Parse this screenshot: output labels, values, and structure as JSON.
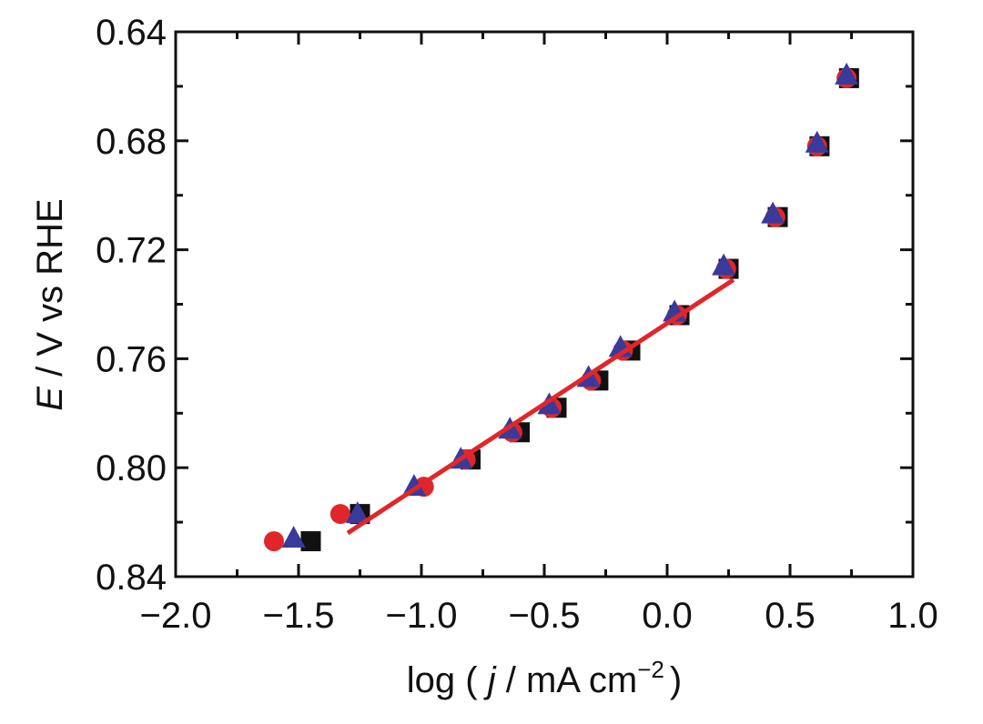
{
  "chart_data": {
    "type": "scatter",
    "xlim": [
      -2.0,
      1.0
    ],
    "ylim": [
      0.84,
      0.64
    ],
    "y_inverted": true,
    "x_ticks": [
      -2.0,
      -1.5,
      -1.0,
      -0.5,
      0.0,
      0.5,
      1.0
    ],
    "x_tick_labels": [
      "−2.0",
      "−1.5",
      "−1.0",
      "−0.5",
      "0.0",
      "0.5",
      "1.0"
    ],
    "x_minor_ticks": [
      -1.75,
      -1.25,
      -0.75,
      -0.25,
      0.25,
      0.75
    ],
    "y_ticks": [
      0.64,
      0.68,
      0.72,
      0.76,
      0.8,
      0.84
    ],
    "y_tick_labels": [
      "0.64",
      "0.68",
      "0.72",
      "0.76",
      "0.80",
      "0.84"
    ],
    "y_minor_ticks": [
      0.66,
      0.7,
      0.74,
      0.78,
      0.82
    ],
    "xlabel": {
      "prefix": "log ( ",
      "italic": "j",
      "suffix": " / mA cm",
      "sup": "−2",
      "close": ")"
    },
    "ylabel": {
      "italic": "E",
      "rest": " / V vs RHE"
    },
    "series": [
      {
        "name": "square",
        "marker": "square",
        "color": "#111111",
        "points": [
          [
            -1.45,
            0.827
          ],
          [
            -1.25,
            0.817
          ],
          [
            -0.8,
            0.797
          ],
          [
            -0.6,
            0.787
          ],
          [
            -0.45,
            0.778
          ],
          [
            -0.28,
            0.768
          ],
          [
            -0.15,
            0.757
          ],
          [
            0.05,
            0.744
          ],
          [
            0.25,
            0.727
          ],
          [
            0.45,
            0.708
          ],
          [
            0.62,
            0.682
          ],
          [
            0.74,
            0.657
          ]
        ]
      },
      {
        "name": "circle",
        "marker": "circle",
        "color": "#e0262b",
        "points": [
          [
            -1.6,
            0.827
          ],
          [
            -1.33,
            0.817
          ],
          [
            -0.99,
            0.807
          ],
          [
            -0.82,
            0.797
          ],
          [
            -0.63,
            0.787
          ],
          [
            -0.47,
            0.778
          ],
          [
            -0.31,
            0.768
          ],
          [
            -0.18,
            0.757
          ],
          [
            0.04,
            0.744
          ],
          [
            0.24,
            0.727
          ],
          [
            0.44,
            0.708
          ],
          [
            0.61,
            0.682
          ],
          [
            0.73,
            0.657
          ]
        ]
      },
      {
        "name": "triangle",
        "marker": "triangle",
        "color": "#3a3a9a",
        "points": [
          [
            -1.52,
            0.826
          ],
          [
            -1.26,
            0.817
          ],
          [
            -1.03,
            0.807
          ],
          [
            -0.84,
            0.797
          ],
          [
            -0.64,
            0.786
          ],
          [
            -0.48,
            0.777
          ],
          [
            -0.32,
            0.767
          ],
          [
            -0.19,
            0.756
          ],
          [
            0.03,
            0.743
          ],
          [
            0.23,
            0.726
          ],
          [
            0.43,
            0.707
          ],
          [
            0.61,
            0.681
          ],
          [
            0.73,
            0.656
          ]
        ]
      }
    ],
    "fit_line": {
      "color": "#e0262b",
      "x": [
        -1.3,
        0.27
      ],
      "y": [
        0.824,
        0.731
      ]
    }
  }
}
